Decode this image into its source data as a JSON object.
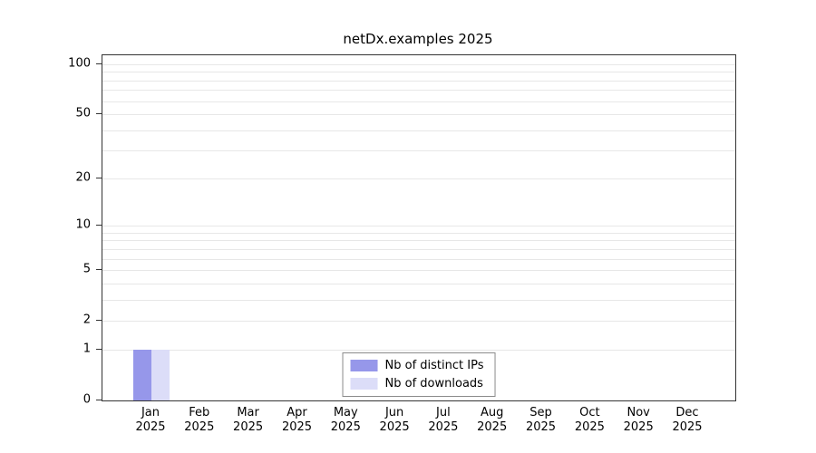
{
  "figure": {
    "title": "netDx.examples 2025",
    "background": "#ffffff"
  },
  "chart_data": {
    "type": "bar",
    "title": "netDx.examples 2025",
    "xlabel": "",
    "ylabel": "",
    "y_axis": {
      "scale": "log1p",
      "ticks": [
        0,
        1,
        2,
        5,
        10,
        20,
        50,
        100
      ],
      "minor_gridlines": [
        1,
        2,
        3,
        4,
        5,
        6,
        7,
        8,
        9,
        10,
        20,
        30,
        40,
        50,
        60,
        70,
        80,
        90,
        100
      ],
      "ylim": [
        0,
        100
      ]
    },
    "categories": [
      {
        "month": "Jan",
        "year": "2025"
      },
      {
        "month": "Feb",
        "year": "2025"
      },
      {
        "month": "Mar",
        "year": "2025"
      },
      {
        "month": "Apr",
        "year": "2025"
      },
      {
        "month": "May",
        "year": "2025"
      },
      {
        "month": "Jun",
        "year": "2025"
      },
      {
        "month": "Jul",
        "year": "2025"
      },
      {
        "month": "Aug",
        "year": "2025"
      },
      {
        "month": "Sep",
        "year": "2025"
      },
      {
        "month": "Oct",
        "year": "2025"
      },
      {
        "month": "Nov",
        "year": "2025"
      },
      {
        "month": "Dec",
        "year": "2025"
      }
    ],
    "series": [
      {
        "name": "Nb of distinct IPs",
        "color": "#9697ea",
        "values": [
          1,
          0,
          0,
          0,
          0,
          0,
          0,
          0,
          0,
          0,
          0,
          0
        ]
      },
      {
        "name": "Nb of downloads",
        "color": "#dcddf8",
        "values": [
          1,
          0,
          0,
          0,
          0,
          0,
          0,
          0,
          0,
          0,
          0,
          0
        ]
      }
    ],
    "legend_position": "bottom-center-inside",
    "grid": true
  }
}
